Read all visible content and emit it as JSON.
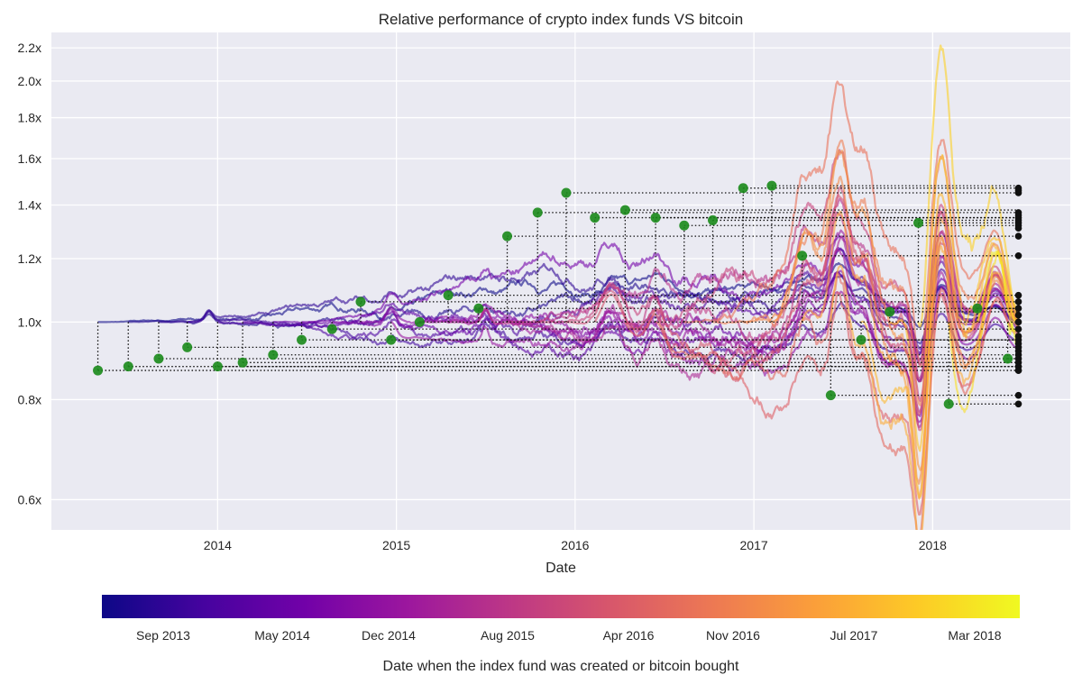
{
  "chart_data": {
    "type": "line",
    "title": "Relative performance of crypto index funds VS bitcoin",
    "xlabel": "Date",
    "ylabel": "",
    "yscale": "log",
    "xlim": [
      2013.07,
      2018.77
    ],
    "ylim": [
      0.55,
      2.3
    ],
    "grid": true,
    "x_ticks": [
      {
        "value": 2014,
        "label": "2014"
      },
      {
        "value": 2015,
        "label": "2015"
      },
      {
        "value": 2016,
        "label": "2016"
      },
      {
        "value": 2017,
        "label": "2017"
      },
      {
        "value": 2018,
        "label": "2018"
      }
    ],
    "y_ticks": [
      {
        "value": 0.6,
        "label": "0.6x"
      },
      {
        "value": 0.8,
        "label": "0.8x"
      },
      {
        "value": 1.0,
        "label": "1.0x"
      },
      {
        "value": 1.2,
        "label": "1.2x"
      },
      {
        "value": 1.4,
        "label": "1.4x"
      },
      {
        "value": 1.6,
        "label": "1.6x"
      },
      {
        "value": 1.8,
        "label": "1.8x"
      },
      {
        "value": 2.0,
        "label": "2.0x"
      },
      {
        "value": 2.2,
        "label": "2.2x"
      }
    ],
    "end_date": 2018.48,
    "colormap": [
      "#0d0887",
      "#46039f",
      "#7201a8",
      "#9c179e",
      "#bd3786",
      "#d8576b",
      "#ed7953",
      "#fb9f3a",
      "#fdca26",
      "#f0f921"
    ],
    "marker_color": "#1a8a1a",
    "end_marker_color": "#111111",
    "funds": [
      {
        "start": 2013.33,
        "start_value": 0.87,
        "end_value": 0.87
      },
      {
        "start": 2013.5,
        "start_value": 0.88,
        "end_value": 0.88
      },
      {
        "start": 2013.67,
        "start_value": 0.9,
        "end_value": 0.89
      },
      {
        "start": 2013.83,
        "start_value": 0.93,
        "end_value": 0.88
      },
      {
        "start": 2014.0,
        "start_value": 0.88,
        "end_value": 0.9
      },
      {
        "start": 2014.14,
        "start_value": 0.89,
        "end_value": 0.91
      },
      {
        "start": 2014.31,
        "start_value": 0.91,
        "end_value": 0.92
      },
      {
        "start": 2014.47,
        "start_value": 0.95,
        "end_value": 0.93
      },
      {
        "start": 2014.64,
        "start_value": 0.98,
        "end_value": 0.95
      },
      {
        "start": 2014.8,
        "start_value": 1.06,
        "end_value": 0.98
      },
      {
        "start": 2014.97,
        "start_value": 0.95,
        "end_value": 0.96
      },
      {
        "start": 2015.13,
        "start_value": 1.0,
        "end_value": 1.0
      },
      {
        "start": 2015.29,
        "start_value": 1.08,
        "end_value": 1.08
      },
      {
        "start": 2015.46,
        "start_value": 1.04,
        "end_value": 1.04
      },
      {
        "start": 2015.62,
        "start_value": 1.28,
        "end_value": 1.28
      },
      {
        "start": 2015.79,
        "start_value": 1.37,
        "end_value": 1.37
      },
      {
        "start": 2015.95,
        "start_value": 1.45,
        "end_value": 1.45
      },
      {
        "start": 2016.11,
        "start_value": 1.35,
        "end_value": 1.35
      },
      {
        "start": 2016.28,
        "start_value": 1.38,
        "end_value": 1.33
      },
      {
        "start": 2016.45,
        "start_value": 1.35,
        "end_value": 1.31
      },
      {
        "start": 2016.61,
        "start_value": 1.32,
        "end_value": 1.34
      },
      {
        "start": 2016.77,
        "start_value": 1.34,
        "end_value": 1.36
      },
      {
        "start": 2016.94,
        "start_value": 1.47,
        "end_value": 1.47
      },
      {
        "start": 2017.1,
        "start_value": 1.48,
        "end_value": 1.46
      },
      {
        "start": 2017.27,
        "start_value": 1.21,
        "end_value": 1.21
      },
      {
        "start": 2017.43,
        "start_value": 0.81,
        "end_value": 0.81
      },
      {
        "start": 2017.6,
        "start_value": 0.95,
        "end_value": 0.94
      },
      {
        "start": 2017.76,
        "start_value": 1.03,
        "end_value": 1.06
      },
      {
        "start": 2017.92,
        "start_value": 1.33,
        "end_value": 1.32
      },
      {
        "start": 2018.09,
        "start_value": 0.79,
        "end_value": 0.79
      },
      {
        "start": 2018.25,
        "start_value": 1.04,
        "end_value": 1.02
      },
      {
        "start": 2018.42,
        "start_value": 0.9,
        "end_value": 0.87
      }
    ],
    "colorbar": {
      "label": "Date when the index fund was created or bitcoin bought",
      "range": [
        2013.33,
        2018.42
      ],
      "ticks": [
        {
          "value": 2013.67,
          "label": "Sep 2013"
        },
        {
          "value": 2014.33,
          "label": "May 2014"
        },
        {
          "value": 2014.92,
          "label": "Dec 2014"
        },
        {
          "value": 2015.58,
          "label": "Aug 2015"
        },
        {
          "value": 2016.25,
          "label": "Apr 2016"
        },
        {
          "value": 2016.83,
          "label": "Nov 2016"
        },
        {
          "value": 2017.5,
          "label": "Jul 2017"
        },
        {
          "value": 2018.17,
          "label": "Mar 2018"
        }
      ]
    }
  }
}
